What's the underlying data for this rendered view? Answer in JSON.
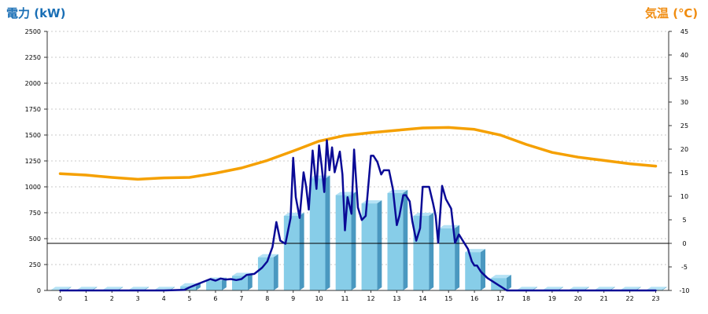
{
  "chart_data": {
    "type": "bar+line",
    "left_axis_title": "電力 (kW)",
    "right_axis_title": "気温 (℃)",
    "colors": {
      "left_title": "#1a6fb5",
      "right_title": "#f08c10",
      "bar_front": "#87cde8",
      "bar_side": "#4a98c0",
      "bar_top": "#b4e2f5",
      "power_line": "#0a0a96",
      "temp_line": "#f5a000",
      "grid": "#c8c8c8",
      "axis": "#333333"
    },
    "ylim_left": [
      0,
      2500
    ],
    "left_ticks": [
      "0",
      "250",
      "500",
      "750",
      "1000",
      "1250",
      "1500",
      "1750",
      "2000",
      "2250",
      "2500"
    ],
    "ylim_right": [
      -10,
      45
    ],
    "right_ticks": [
      "-10",
      "-5",
      "0",
      "5",
      "10",
      "15",
      "20",
      "25",
      "30",
      "35",
      "40",
      "45"
    ],
    "categories": [
      "0",
      "1",
      "2",
      "3",
      "4",
      "5",
      "6",
      "7",
      "8",
      "9",
      "10",
      "11",
      "12",
      "13",
      "14",
      "15",
      "16",
      "17",
      "18",
      "19",
      "20",
      "21",
      "22",
      "23"
    ],
    "hourly_power_kw": [
      5,
      5,
      5,
      5,
      5,
      40,
      95,
      140,
      320,
      720,
      1080,
      920,
      840,
      940,
      720,
      600,
      370,
      120,
      5,
      5,
      5,
      5,
      5,
      5
    ],
    "power_line": {
      "x": [
        0,
        1,
        2,
        3,
        4,
        4.8,
        5.0,
        5.3,
        5.5,
        5.8,
        6.0,
        6.2,
        6.4,
        6.6,
        6.8,
        7.0,
        7.2,
        7.5,
        7.8,
        8.0,
        8.2,
        8.35,
        8.5,
        8.7,
        8.9,
        9.0,
        9.1,
        9.25,
        9.4,
        9.5,
        9.6,
        9.75,
        9.9,
        10.0,
        10.1,
        10.2,
        10.3,
        10.4,
        10.5,
        10.6,
        10.8,
        10.9,
        11.0,
        11.1,
        11.25,
        11.35,
        11.5,
        11.65,
        11.8,
        12.0,
        12.1,
        12.25,
        12.4,
        12.5,
        12.7,
        12.85,
        13.0,
        13.1,
        13.25,
        13.35,
        13.5,
        13.6,
        13.75,
        13.9,
        14.0,
        14.25,
        14.4,
        14.5,
        14.6,
        14.75,
        14.9,
        15.1,
        15.25,
        15.4,
        15.5,
        15.6,
        15.75,
        15.9,
        16.0,
        16.1,
        16.25,
        16.5,
        16.75,
        17.0,
        17.25,
        17.5,
        17.75,
        18,
        19,
        20,
        21,
        22,
        23
      ],
      "y": [
        0,
        0,
        0,
        0,
        0,
        5,
        30,
        60,
        80,
        110,
        95,
        115,
        105,
        110,
        100,
        110,
        150,
        160,
        220,
        280,
        420,
        660,
        480,
        450,
        700,
        1280,
        900,
        700,
        1140,
        1000,
        780,
        1350,
        980,
        1400,
        1200,
        950,
        1450,
        1160,
        1380,
        1140,
        1340,
        1120,
        580,
        900,
        740,
        1360,
        800,
        680,
        720,
        1300,
        1300,
        1240,
        1120,
        1160,
        1160,
        980,
        630,
        720,
        920,
        920,
        860,
        670,
        480,
        600,
        1000,
        1000,
        840,
        720,
        460,
        1010,
        880,
        790,
        460,
        540,
        500,
        460,
        400,
        280,
        240,
        240,
        180,
        120,
        80,
        40,
        0,
        0,
        0,
        0,
        0,
        0,
        0,
        0,
        0
      ],
      "ylim": [
        0,
        2500
      ]
    },
    "temperature_line": {
      "x": [
        0,
        1,
        2,
        3,
        4,
        5,
        6,
        7,
        8,
        9,
        10,
        11,
        12,
        13,
        14,
        15,
        16,
        17,
        18,
        19,
        20,
        21,
        22,
        23
      ],
      "y": [
        14.8,
        14.5,
        14.0,
        13.6,
        13.9,
        14.0,
        14.9,
        16.0,
        17.6,
        19.6,
        21.7,
        22.9,
        23.5,
        24.0,
        24.5,
        24.6,
        24.2,
        23.0,
        21.0,
        19.3,
        18.3,
        17.6,
        16.9,
        16.4
      ],
      "ylim": [
        -10,
        45
      ]
    },
    "grid": true
  }
}
